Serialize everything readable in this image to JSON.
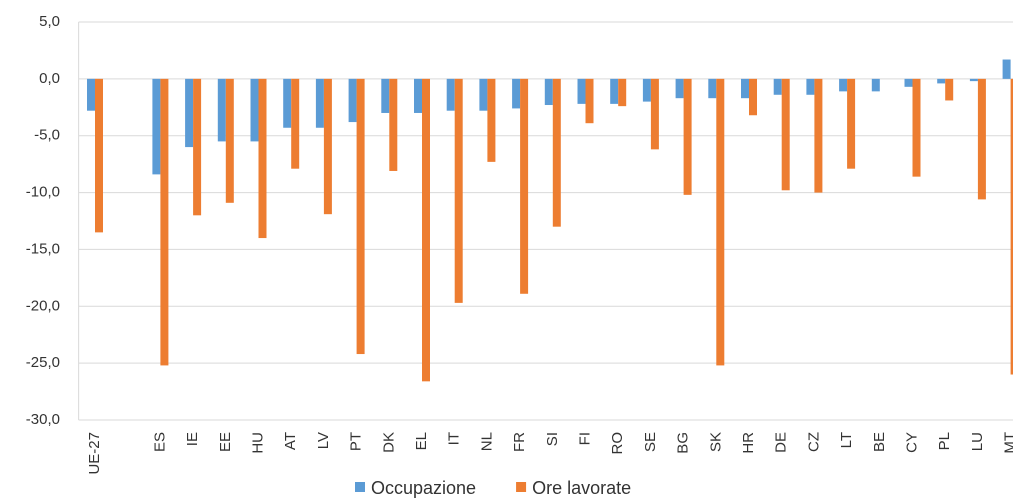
{
  "chart_data": {
    "type": "bar",
    "categories": [
      "UE-27",
      null,
      "ES",
      "IE",
      "EE",
      "HU",
      "AT",
      "LV",
      "PT",
      "DK",
      "EL",
      "IT",
      "NL",
      "FR",
      "SI",
      "FI",
      "RO",
      "SE",
      "BG",
      "SK",
      "HR",
      "DE",
      "CZ",
      "LT",
      "BE",
      "CY",
      "PL",
      "LU",
      "MT"
    ],
    "series": [
      {
        "name": "Occupazione",
        "color": "#5b9bd5",
        "values": [
          -2.8,
          null,
          -8.4,
          -6.0,
          -5.5,
          -5.5,
          -4.3,
          -4.3,
          -3.8,
          -3.0,
          -3.0,
          -2.8,
          -2.8,
          -2.6,
          -2.3,
          -2.2,
          -2.2,
          -2.0,
          -1.7,
          -1.7,
          -1.7,
          -1.4,
          -1.4,
          -1.1,
          -1.1,
          -0.7,
          -0.4,
          -0.2,
          1.7
        ]
      },
      {
        "name": "Ore lavorate",
        "color": "#ed7d31",
        "values": [
          -13.5,
          null,
          -25.2,
          -12.0,
          -10.9,
          -14.0,
          -7.9,
          -11.9,
          -24.2,
          -8.1,
          -26.6,
          -19.7,
          -7.3,
          -18.9,
          -13.0,
          -3.9,
          -2.4,
          -6.2,
          -10.2,
          -25.2,
          -3.2,
          -9.8,
          -10.0,
          -7.9,
          null,
          -8.6,
          -1.9,
          -10.6,
          -26.0
        ]
      }
    ],
    "ylim": [
      -30,
      5
    ],
    "yticks": [
      {
        "value": 5,
        "label": "5,0"
      },
      {
        "value": 0,
        "label": "0,0"
      },
      {
        "value": -5,
        "label": "-5,0"
      },
      {
        "value": -10,
        "label": "-10,0"
      },
      {
        "value": -15,
        "label": "-15,0"
      },
      {
        "value": -20,
        "label": "-20,0"
      },
      {
        "value": -25,
        "label": "-25,0"
      },
      {
        "value": -30,
        "label": "-30,0"
      }
    ],
    "grid": true,
    "legend": "bottom"
  }
}
